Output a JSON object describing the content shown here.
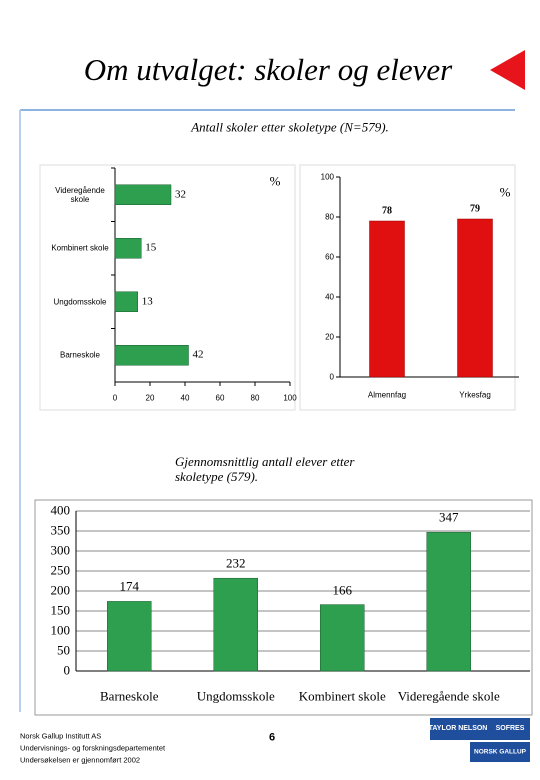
{
  "page": {
    "title": "Om utvalget: skoler og elever",
    "footer": [
      "Norsk Gallup Institutt AS",
      "Undervisnings- og forskningsdepartementet",
      "Undersøkelsen er gjennomført 2002"
    ],
    "page_number": "6",
    "logo": [
      "TAYLOR NELSON",
      "SOFRES",
      "NORSK GALLUP"
    ]
  },
  "chart_data": [
    {
      "type": "hbar",
      "title": "Antall skoler etter skoletype (N=579).",
      "unit_label": "%",
      "categories": [
        "Videregående skole",
        "Kombinert skole",
        "Ungdomsskole",
        "Barneskole"
      ],
      "values": [
        32,
        15,
        13,
        42
      ],
      "color": "#2e9e4f",
      "xlim": [
        0,
        100
      ],
      "xticks": [
        0,
        20,
        40,
        60,
        80,
        100
      ]
    },
    {
      "type": "bar",
      "unit_label": "%",
      "categories": [
        "Almennfag",
        "Yrkesfag"
      ],
      "values": [
        78,
        79
      ],
      "color": "#e01010",
      "ylim": [
        0,
        100
      ],
      "yticks": [
        0,
        20,
        40,
        60,
        80,
        100
      ]
    },
    {
      "type": "bar",
      "title": "Gjennomsnittlig antall elever etter skoletype (579).",
      "categories": [
        "Barneskole",
        "Ungdomsskole",
        "Kombinert skole",
        "Videregående skole"
      ],
      "values": [
        174,
        232,
        166,
        347
      ],
      "color": "#2e9e4f",
      "ylim": [
        0,
        400
      ],
      "yticks": [
        0,
        50,
        100,
        150,
        200,
        250,
        300,
        350,
        400
      ],
      "grid": true
    }
  ]
}
